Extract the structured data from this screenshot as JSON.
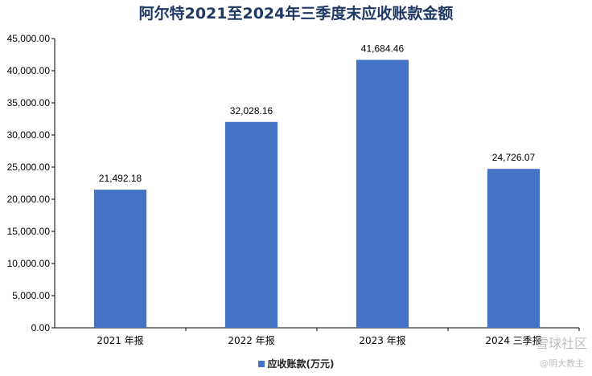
{
  "chart_data": {
    "type": "bar",
    "title": "阿尔特2021至2024年三季度末应收账款金额",
    "categories": [
      "2021 年报",
      "2022 年报",
      "2023 年报",
      "2024 三季报"
    ],
    "series": [
      {
        "name": "应收账款(万元)",
        "values": [
          21492.18,
          32028.16,
          41684.46,
          24726.07
        ],
        "labels": [
          "21,492.18",
          "32,028.16",
          "41,684.46",
          "24,726.07"
        ],
        "color": "#4472c4"
      }
    ],
    "ylim": [
      0,
      45000
    ],
    "yticks": [
      0,
      5000,
      10000,
      15000,
      20000,
      25000,
      30000,
      35000,
      40000,
      45000
    ],
    "ytick_labels": [
      "0.00",
      "5,000.00",
      "10,000.00",
      "15,000.00",
      "20,000.00",
      "25,000.00",
      "30,000.00",
      "35,000.00",
      "40,000.00",
      "45,000.00"
    ],
    "xlabel": "",
    "ylabel": "",
    "grid": false,
    "legend_position": "bottom"
  },
  "watermarks": {
    "top": "雪球社区",
    "bottom": "@明大教主"
  },
  "colors": {
    "bar": "#4472c4",
    "title": "#1f3864"
  }
}
